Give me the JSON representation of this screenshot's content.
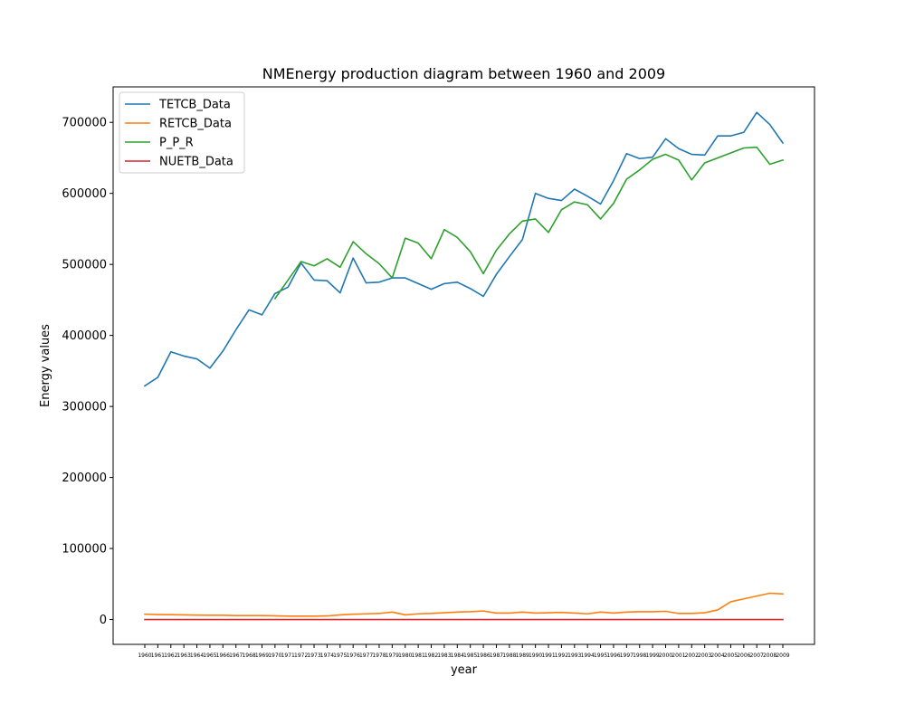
{
  "chart_data": {
    "type": "line",
    "title": "NMEnergy production diagram between 1960 and 2009",
    "xlabel": "year",
    "ylabel": "Energy values",
    "ylim": [
      -35000,
      750000
    ],
    "yticks": [
      0,
      100000,
      200000,
      300000,
      400000,
      500000,
      600000,
      700000
    ],
    "yticklabels": [
      "0",
      "100000",
      "200000",
      "300000",
      "400000",
      "500000",
      "600000",
      "700000"
    ],
    "legend_position": "upper-left",
    "grid": false,
    "categories": [
      "1960",
      "1961",
      "1962",
      "1963",
      "1964",
      "1965",
      "1966",
      "1967",
      "1968",
      "1969",
      "1970",
      "1971",
      "1972",
      "1973",
      "1974",
      "1975",
      "1976",
      "1977",
      "1978",
      "1979",
      "1980",
      "1981",
      "1982",
      "1983",
      "1984",
      "1985",
      "1986",
      "1987",
      "1988",
      "1989",
      "1990",
      "1991",
      "1992",
      "1993",
      "1994",
      "1995",
      "1996",
      "1997",
      "1998",
      "1999",
      "2000",
      "2001",
      "2002",
      "2003",
      "2004",
      "2005",
      "2006",
      "2007",
      "2008",
      "2009"
    ],
    "series": [
      {
        "name": "TETCB_Data",
        "color": "#1f77b4",
        "values": [
          329000,
          341000,
          377000,
          371000,
          367000,
          354000,
          378000,
          408000,
          436000,
          429000,
          459000,
          468000,
          502000,
          478000,
          477000,
          460000,
          509000,
          474000,
          475000,
          481000,
          481000,
          473000,
          465000,
          473000,
          475000,
          466000,
          455000,
          486000,
          511000,
          535000,
          600000,
          593000,
          590000,
          606000,
          596000,
          585000,
          618000,
          656000,
          649000,
          651000,
          677000,
          663000,
          655000,
          654000,
          681000,
          681000,
          686000,
          714000,
          697000,
          671000
        ]
      },
      {
        "name": "RETCB_Data",
        "color": "#ff7f0e",
        "values": [
          7500,
          7000,
          6800,
          6500,
          6200,
          6000,
          6000,
          5500,
          5500,
          5500,
          5200,
          4800,
          4800,
          4800,
          5000,
          6500,
          7500,
          8000,
          8500,
          10500,
          6500,
          8000,
          8500,
          9500,
          10500,
          11000,
          12000,
          9000,
          9000,
          10500,
          9000,
          9500,
          10000,
          9000,
          8000,
          10500,
          9000,
          10500,
          11000,
          11000,
          11500,
          8500,
          8500,
          9500,
          13500,
          25000,
          29000,
          33000,
          37000,
          36000
        ]
      },
      {
        "name": "P_P_R",
        "color": "#2ca02c",
        "values": [
          null,
          null,
          null,
          null,
          null,
          null,
          null,
          null,
          null,
          null,
          452000,
          478000,
          504000,
          498000,
          508000,
          496000,
          532000,
          515000,
          501000,
          481000,
          537000,
          530000,
          508000,
          549000,
          538000,
          518000,
          487000,
          520000,
          543000,
          561000,
          564000,
          545000,
          577000,
          588000,
          584000,
          564000,
          586000,
          620000,
          633000,
          648000,
          655000,
          647000,
          619000,
          643000,
          650000,
          657000,
          664000,
          665000,
          641000,
          647000
        ]
      },
      {
        "name": "NUETB_Data",
        "color": "#d62728",
        "values": [
          0,
          0,
          0,
          0,
          0,
          0,
          0,
          0,
          0,
          0,
          0,
          0,
          0,
          0,
          0,
          0,
          0,
          0,
          0,
          0,
          0,
          0,
          0,
          0,
          0,
          0,
          0,
          0,
          0,
          0,
          0,
          0,
          0,
          0,
          0,
          0,
          0,
          0,
          0,
          0,
          0,
          0,
          0,
          0,
          0,
          0,
          0,
          0,
          0,
          0
        ]
      }
    ]
  }
}
